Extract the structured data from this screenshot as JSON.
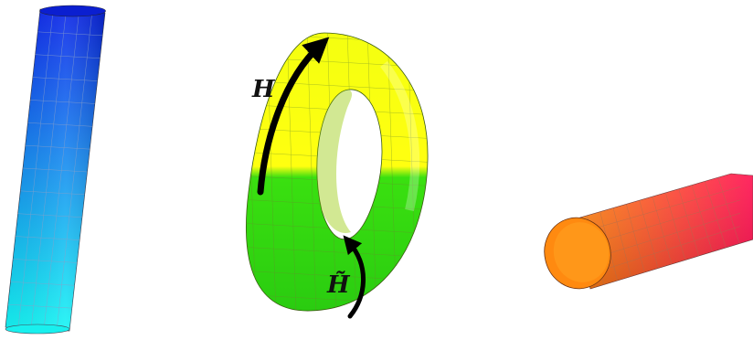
{
  "labels": {
    "upper": "H",
    "lower": "H̃"
  },
  "colors": {
    "cylinder_top": "#0a24e8",
    "cylinder_bottom": "#16f6f4",
    "torus_upper": "#ffff10",
    "torus_lower": "#2edc10",
    "tube_left": "#ff8a10",
    "tube_right": "#ff1050",
    "arrow": "#000000"
  }
}
